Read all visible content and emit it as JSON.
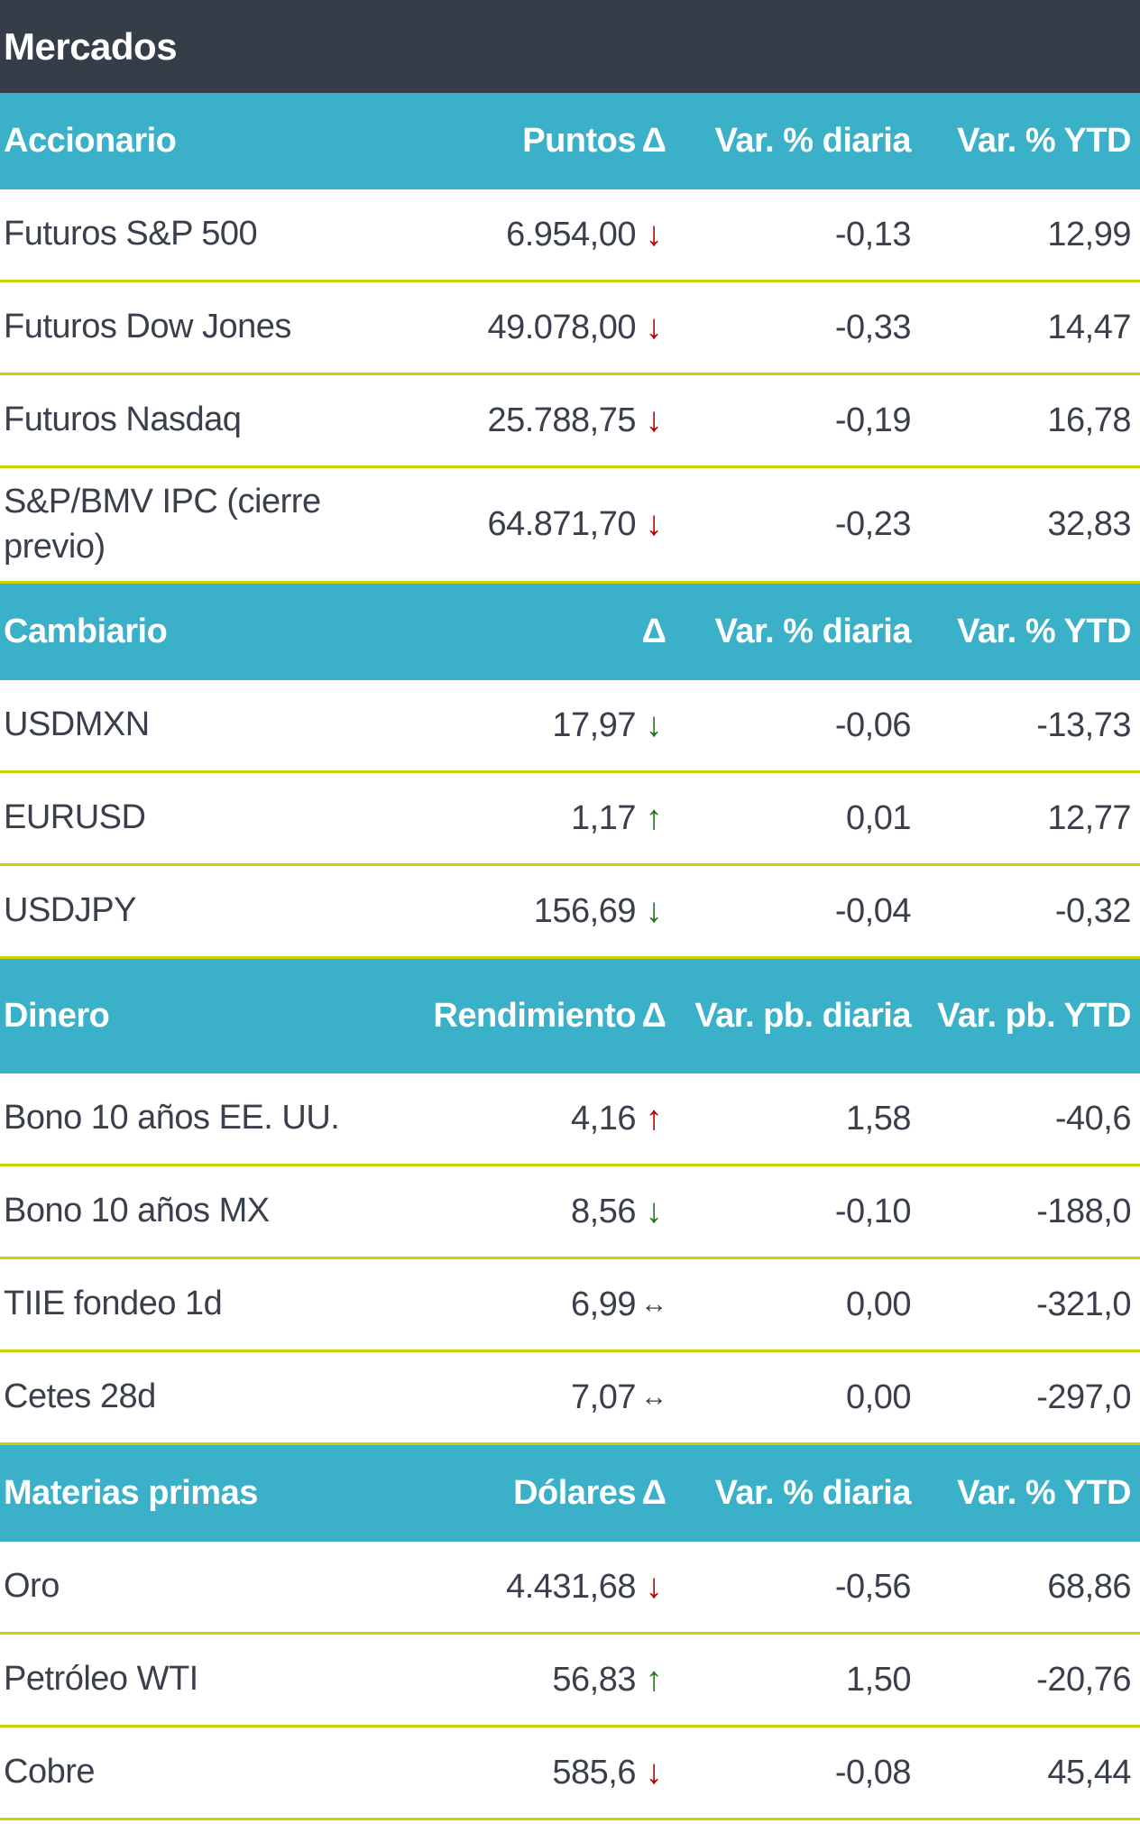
{
  "title": "Mercados",
  "colors": {
    "title_bg": "#353d48",
    "header_bg": "#3bb0c9",
    "separator": "#c8d400",
    "down": "#c00000",
    "up": "#1a7a1a"
  },
  "sections": [
    {
      "header": [
        "Accionario",
        "Puntos",
        "Δ",
        "Var. % diaria",
        "Var. % YTD"
      ],
      "rows": [
        {
          "name": "Futuros S&P 500",
          "value": "6.954,00",
          "arrow": "↓",
          "trend": "down-red",
          "daily": "-0,13",
          "ytd": "12,99"
        },
        {
          "name": "Futuros Dow Jones",
          "value": "49.078,00",
          "arrow": "↓",
          "trend": "down-red",
          "daily": "-0,33",
          "ytd": "14,47"
        },
        {
          "name": "Futuros Nasdaq",
          "value": "25.788,75",
          "arrow": "↓",
          "trend": "down-red",
          "daily": "-0,19",
          "ytd": "16,78"
        },
        {
          "name": "S&P/BMV IPC (cierre previo)",
          "value": "64.871,70",
          "arrow": "↓",
          "trend": "down-red",
          "daily": "-0,23",
          "ytd": "32,83"
        }
      ]
    },
    {
      "header": [
        "Cambiario",
        "",
        "Δ",
        "Var. % diaria",
        "Var. % YTD"
      ],
      "rows": [
        {
          "name": "USDMXN",
          "value": "17,97",
          "arrow": "↓",
          "trend": "down-green",
          "daily": "-0,06",
          "ytd": "-13,73"
        },
        {
          "name": "EURUSD",
          "value": "1,17",
          "arrow": "↑",
          "trend": "up-green",
          "daily": "0,01",
          "ytd": "12,77"
        },
        {
          "name": "USDJPY",
          "value": "156,69",
          "arrow": "↓",
          "trend": "down-green",
          "daily": "-0,04",
          "ytd": "-0,32"
        }
      ]
    },
    {
      "header": [
        "Dinero",
        "Rendimiento",
        "Δ",
        "Var. pb. diaria",
        "Var. pb. YTD"
      ],
      "rows": [
        {
          "name": "Bono 10 años EE. UU.",
          "value": "4,16",
          "arrow": "↑",
          "trend": "up-red",
          "daily": "1,58",
          "ytd": "-40,6"
        },
        {
          "name": "Bono 10 años MX",
          "value": "8,56",
          "arrow": "↓",
          "trend": "down-green",
          "daily": "-0,10",
          "ytd": "-188,0"
        },
        {
          "name": "TIIE fondeo 1d",
          "value": "6,99",
          "arrow": "↔",
          "trend": "flat",
          "daily": "0,00",
          "ytd": "-321,0"
        },
        {
          "name": "Cetes 28d",
          "value": "7,07",
          "arrow": "↔",
          "trend": "flat",
          "daily": "0,00",
          "ytd": "-297,0"
        }
      ]
    },
    {
      "header": [
        "Materias primas",
        "Dólares",
        "Δ",
        "Var. % diaria",
        "Var. % YTD"
      ],
      "rows": [
        {
          "name": "Oro",
          "value": "4.431,68",
          "arrow": "↓",
          "trend": "down-red",
          "daily": "-0,56",
          "ytd": "68,86"
        },
        {
          "name": "Petróleo WTI",
          "value": "56,83",
          "arrow": "↑",
          "trend": "up-green",
          "daily": "1,50",
          "ytd": "-20,76"
        },
        {
          "name": "Cobre",
          "value": "585,6",
          "arrow": "↓",
          "trend": "down-red",
          "daily": "-0,08",
          "ytd": "45,44"
        }
      ]
    }
  ]
}
